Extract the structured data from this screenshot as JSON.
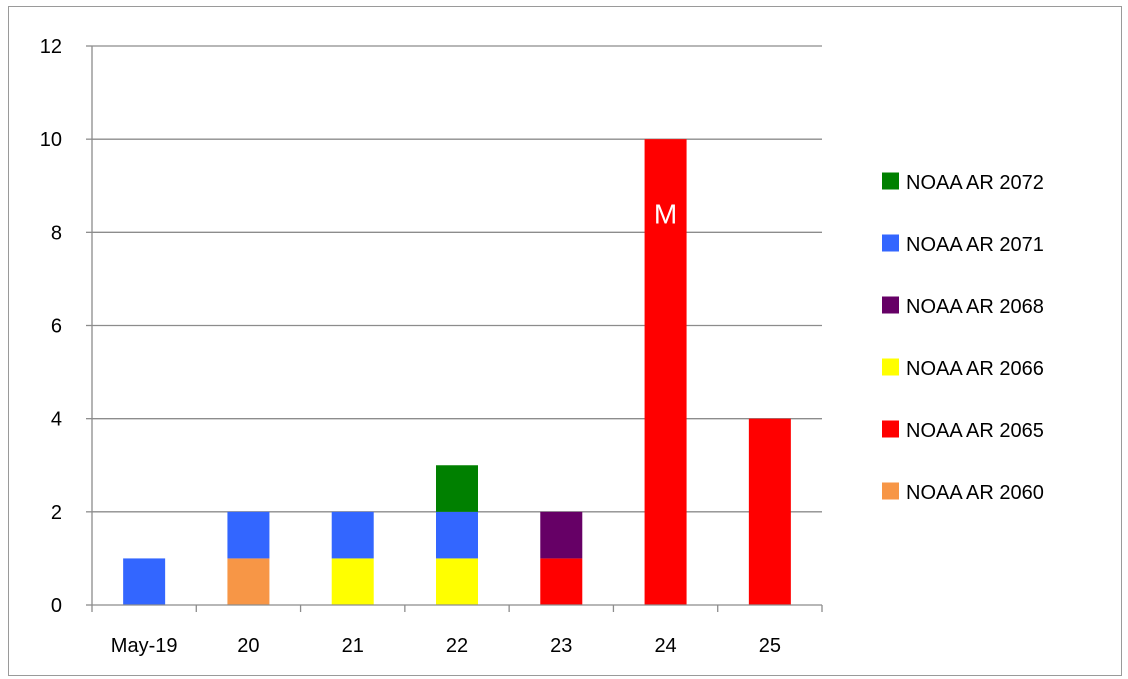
{
  "chart_data": {
    "type": "bar",
    "stacked": true,
    "title": "",
    "xlabel": "",
    "ylabel": "",
    "categories": [
      "May-19",
      "20",
      "21",
      "22",
      "23",
      "24",
      "25"
    ],
    "ylim": [
      0,
      12
    ],
    "yticks": [
      0,
      2,
      4,
      6,
      8,
      10,
      12
    ],
    "grid": true,
    "legend_position": "right",
    "series": [
      {
        "name": "NOAA AR 2060",
        "color": "#F79646",
        "values": [
          0,
          1,
          0,
          0,
          0,
          0,
          0
        ]
      },
      {
        "name": "NOAA AR 2065",
        "color": "#FF0000",
        "values": [
          0,
          0,
          0,
          0,
          1,
          10,
          4
        ]
      },
      {
        "name": "NOAA AR 2066",
        "color": "#FFFF00",
        "values": [
          0,
          0,
          1,
          1,
          0,
          0,
          0
        ]
      },
      {
        "name": "NOAA AR 2068",
        "color": "#660066",
        "values": [
          0,
          0,
          0,
          0,
          1,
          0,
          0
        ]
      },
      {
        "name": "NOAA AR 2071",
        "color": "#3366FF",
        "values": [
          1,
          1,
          1,
          1,
          0,
          0,
          0
        ]
      },
      {
        "name": "NOAA AR 2072",
        "color": "#008000",
        "values": [
          0,
          0,
          0,
          1,
          0,
          0,
          0
        ]
      }
    ],
    "legend_order": [
      "NOAA AR 2072",
      "NOAA AR 2071",
      "NOAA AR 2068",
      "NOAA AR 2066",
      "NOAA AR 2065",
      "NOAA AR 2060"
    ],
    "annotations": [
      {
        "text": "M",
        "category": "24",
        "series": "NOAA AR 2065",
        "y": 8.4
      }
    ]
  }
}
